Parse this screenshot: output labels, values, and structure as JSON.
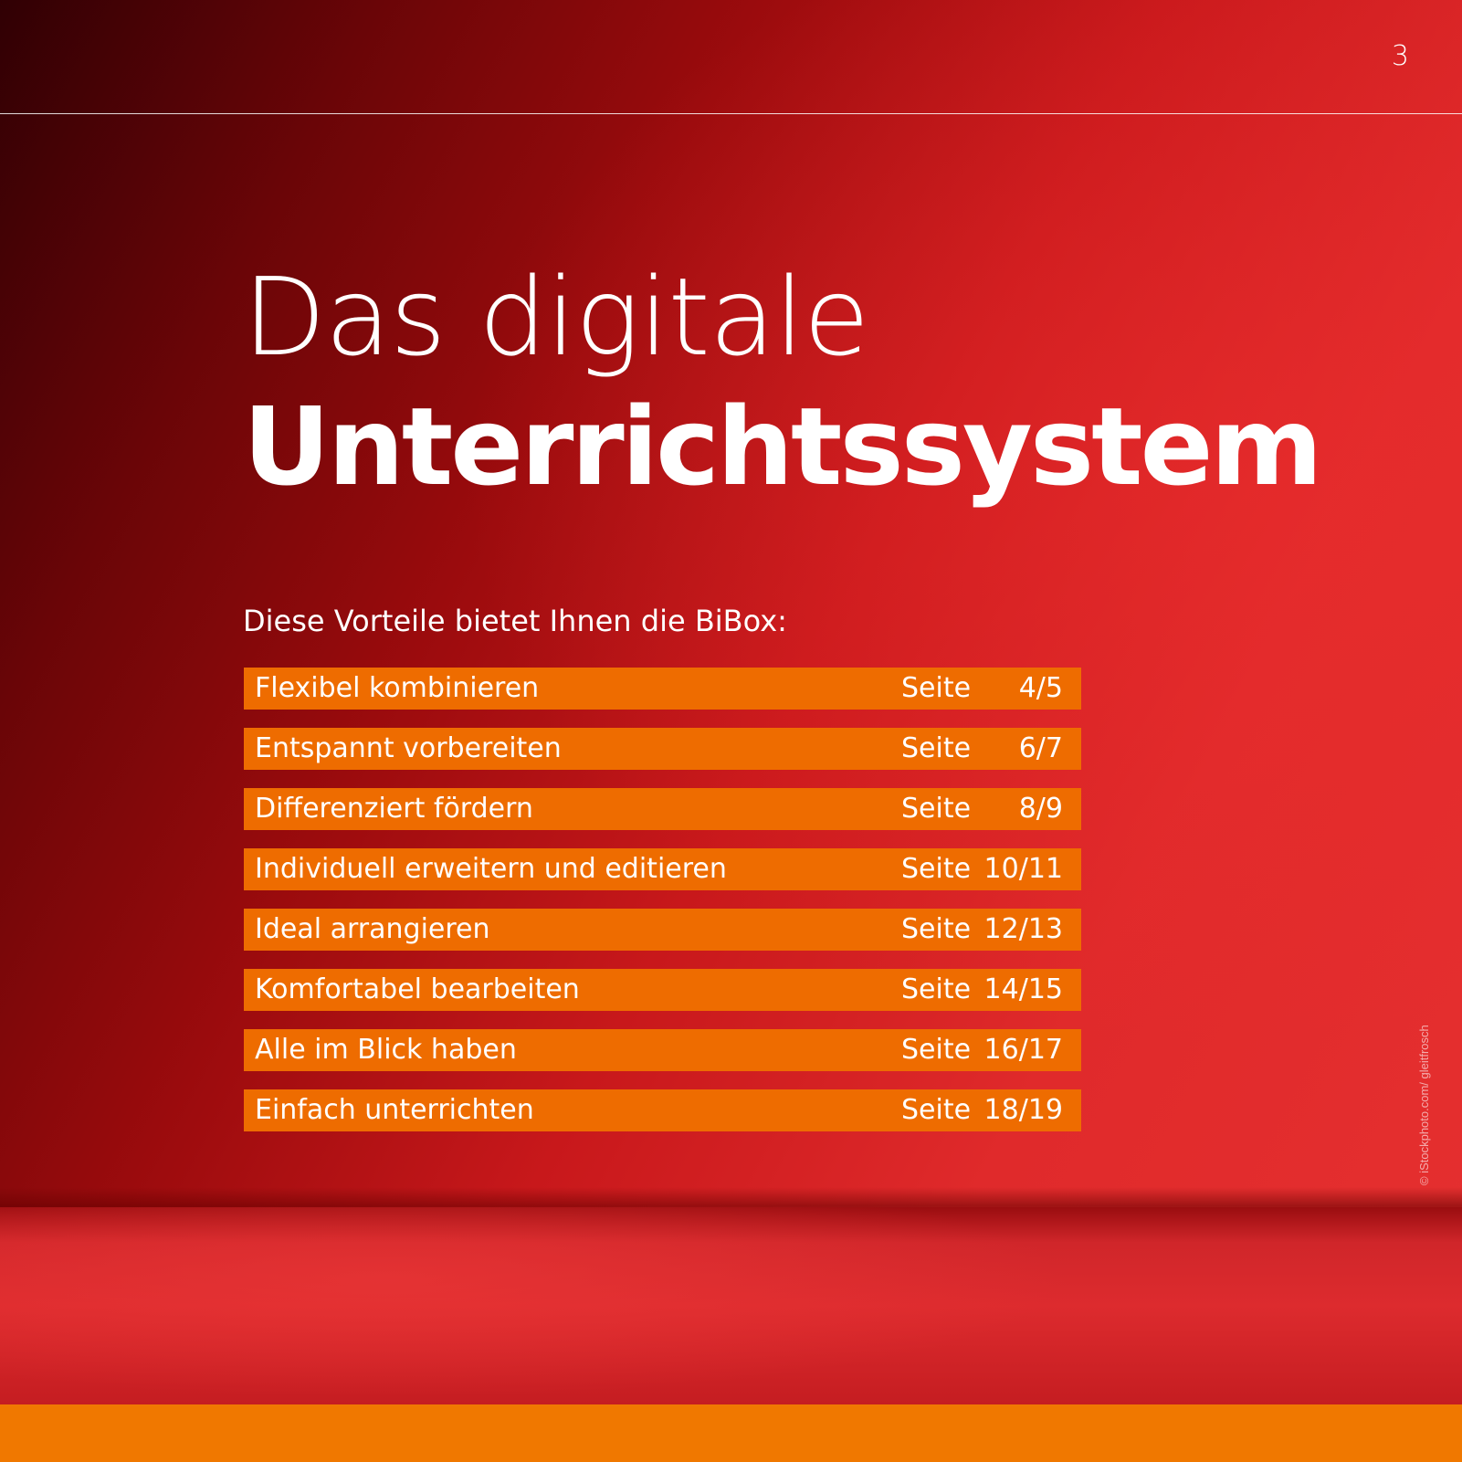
{
  "page_number": "3",
  "title": {
    "line1": "Das digitale",
    "line2": "Unterrichtssystem"
  },
  "intro": "Diese Vorteile bietet Ihnen die BiBox:",
  "toc": [
    {
      "label": "Flexibel kombinieren",
      "seite": "Seite",
      "pages": "4/5"
    },
    {
      "label": "Entspannt vorbereiten",
      "seite": "Seite",
      "pages": "6/7"
    },
    {
      "label": "Differenziert fördern",
      "seite": "Seite",
      "pages": "8/9"
    },
    {
      "label": "Individuell erweitern und editieren",
      "seite": "Seite",
      "pages": "10/11"
    },
    {
      "label": "Ideal arrangieren",
      "seite": "Seite",
      "pages": "12/13"
    },
    {
      "label": "Komfortabel bearbeiten",
      "seite": "Seite",
      "pages": "14/15"
    },
    {
      "label": "Alle im Blick haben",
      "seite": "Seite",
      "pages": "16/17"
    },
    {
      "label": "Einfach unterrichten",
      "seite": "Seite",
      "pages": "18/19"
    }
  ],
  "photo_credit": "© iStockphoto.com/ gleitfrosch",
  "colors": {
    "accent_orange": "#ee6c00",
    "bottom_bar": "#f07800",
    "background_red": "#e02a2b",
    "background_dark": "#300004"
  }
}
